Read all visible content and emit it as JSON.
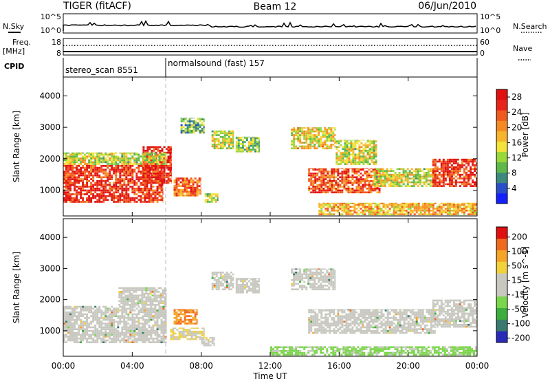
{
  "header": {
    "title": "TIGER (fitACF)",
    "beam": "Beam 12",
    "date": "06/Jun/2010"
  },
  "status_panels": {
    "nsky_label": "N.Sky",
    "nsearch_label": "N.Search",
    "count_ticks_left": [
      "10^5",
      "10^0"
    ],
    "count_ticks_right": [
      "10^5",
      "10^0"
    ],
    "freq_label": "Freq.",
    "freq_unit": "[MHz]",
    "freq_ticks": [
      "18",
      "8"
    ],
    "nave_label": "Nave",
    "nave_ticks": [
      "60",
      "0"
    ],
    "cpid_label": "CPID",
    "cpid_segments": [
      {
        "name": "stereo_scan 8551",
        "start_hour": 0,
        "end_hour": 6
      },
      {
        "name": "normalsound (fast) 157",
        "start_hour": 6,
        "end_hour": 24
      }
    ]
  },
  "chart_data": [
    {
      "type": "heatmap",
      "title": "",
      "xlabel": "",
      "ylabel": "Slant Range [km]",
      "x_ticks": [
        "00:00",
        "04:00",
        "08:00",
        "12:00",
        "16:00",
        "20:00",
        "00:00"
      ],
      "y_ticks": [
        1000,
        2000,
        3000,
        4000
      ],
      "xlim_hours": [
        0,
        24
      ],
      "ylim_km": [
        180,
        4600
      ],
      "colorbar": {
        "label": "Power [dB]",
        "ticks": [
          4,
          8,
          12,
          16,
          20,
          24,
          28
        ],
        "range": [
          0,
          30
        ],
        "colors": [
          "#1420ff",
          "#2a4ec8",
          "#3c8a7e",
          "#5fb84a",
          "#9ad83a",
          "#f2e23a",
          "#f7b52c",
          "#f58a24",
          "#f15a1e",
          "#e8241a",
          "#e01010"
        ]
      },
      "regions": [
        {
          "h0": 0.0,
          "h1": 5.8,
          "r0": 600,
          "r1": 1800,
          "value": 26
        },
        {
          "h0": 4.6,
          "h1": 6.3,
          "r0": 1200,
          "r1": 2400,
          "value": 27
        },
        {
          "h0": 6.4,
          "h1": 8.0,
          "r0": 800,
          "r1": 1400,
          "value": 22
        },
        {
          "h0": 8.2,
          "h1": 9.0,
          "r0": 600,
          "r1": 900,
          "value": 12
        },
        {
          "h0": 0.0,
          "h1": 6.0,
          "r0": 1800,
          "r1": 2200,
          "value": 14
        },
        {
          "h0": 6.8,
          "h1": 8.2,
          "r0": 2800,
          "r1": 3300,
          "value": 10
        },
        {
          "h0": 8.6,
          "h1": 9.9,
          "r0": 2300,
          "r1": 2900,
          "value": 14
        },
        {
          "h0": 10.0,
          "h1": 11.4,
          "r0": 2200,
          "r1": 2700,
          "value": 12
        },
        {
          "h0": 13.2,
          "h1": 15.8,
          "r0": 2300,
          "r1": 3000,
          "value": 16
        },
        {
          "h0": 15.8,
          "h1": 18.2,
          "r0": 1800,
          "r1": 2600,
          "value": 14
        },
        {
          "h0": 14.2,
          "h1": 18.4,
          "r0": 900,
          "r1": 1700,
          "value": 24
        },
        {
          "h0": 18.0,
          "h1": 21.6,
          "r0": 1100,
          "r1": 1700,
          "value": 14
        },
        {
          "h0": 21.4,
          "h1": 24.0,
          "r0": 1100,
          "r1": 2000,
          "value": 26
        },
        {
          "h0": 14.8,
          "h1": 24.0,
          "r0": 200,
          "r1": 600,
          "value": 18
        }
      ]
    },
    {
      "type": "heatmap",
      "title": "",
      "xlabel": "Time UT",
      "ylabel": "Slant Range [km]",
      "x_ticks": [
        "00:00",
        "04:00",
        "08:00",
        "12:00",
        "16:00",
        "20:00",
        "00:00"
      ],
      "y_ticks": [
        1000,
        2000,
        3000,
        4000
      ],
      "xlim_hours": [
        0,
        24
      ],
      "ylim_km": [
        180,
        4600
      ],
      "colorbar": {
        "label": "Velocity [m s^-1]",
        "ticks": [
          200,
          100,
          50,
          15,
          -15,
          -50,
          -100,
          -200
        ],
        "range": [
          -250,
          250
        ],
        "colors": [
          "#2a2ab8",
          "#3a7a6e",
          "#3cae3c",
          "#7ad64a",
          "#c8c8c0",
          "#c8c8c0",
          "#f2d23a",
          "#f5a428",
          "#f06a1e",
          "#e01010"
        ]
      },
      "regions": [
        {
          "h0": 0.0,
          "h1": 6.0,
          "r0": 600,
          "r1": 1800,
          "value": 0
        },
        {
          "h0": 3.2,
          "h1": 6.0,
          "r0": 1800,
          "r1": 2400,
          "value": 0
        },
        {
          "h0": 6.4,
          "h1": 7.8,
          "r0": 1200,
          "r1": 1700,
          "value": 150
        },
        {
          "h0": 6.2,
          "h1": 8.2,
          "r0": 700,
          "r1": 1100,
          "value": 45
        },
        {
          "h0": 8.0,
          "h1": 8.8,
          "r0": 500,
          "r1": 800,
          "value": 40
        },
        {
          "h0": 8.6,
          "h1": 9.9,
          "r0": 2300,
          "r1": 2900,
          "value": 0
        },
        {
          "h0": 10.0,
          "h1": 11.4,
          "r0": 2200,
          "r1": 2700,
          "value": 0
        },
        {
          "h0": 13.2,
          "h1": 15.8,
          "r0": 2300,
          "r1": 3000,
          "value": 0
        },
        {
          "h0": 14.2,
          "h1": 21.6,
          "r0": 900,
          "r1": 1700,
          "value": 0
        },
        {
          "h0": 21.4,
          "h1": 24.0,
          "r0": 1100,
          "r1": 2000,
          "value": 0
        },
        {
          "h0": 12.0,
          "h1": 24.0,
          "r0": 200,
          "r1": 500,
          "value": -60
        }
      ]
    }
  ]
}
